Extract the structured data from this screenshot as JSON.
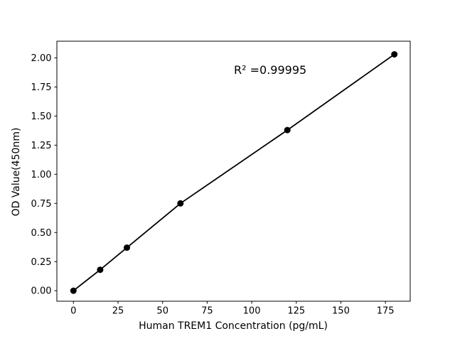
{
  "chart_data": {
    "type": "scatter",
    "title": "",
    "xlabel": "Human TREM1 Concentration (pg/mL)",
    "ylabel": "OD Value(450nm)",
    "x": [
      0,
      15,
      30,
      60,
      120,
      180
    ],
    "y": [
      0.0,
      0.18,
      0.37,
      0.75,
      1.38,
      2.03
    ],
    "fit_line": "straight line connecting all points (linear standard curve)",
    "annotation": {
      "text": "R² =0.99995",
      "r_squared": 0.99995
    },
    "xticks": [
      "0",
      "25",
      "50",
      "75",
      "100",
      "125",
      "150",
      "175"
    ],
    "yticks": [
      "0.00",
      "0.25",
      "0.50",
      "0.75",
      "1.00",
      "1.25",
      "1.50",
      "1.75",
      "2.00"
    ],
    "xlim": [
      -9.3,
      188.9
    ],
    "ylim": [
      -0.09,
      2.143
    ],
    "grid": false,
    "legend": "none",
    "marker": "filled-circle",
    "marker_color": "#000000",
    "line_color": "#000000",
    "axes_color": "#000000",
    "background_color": "#ffffff"
  }
}
